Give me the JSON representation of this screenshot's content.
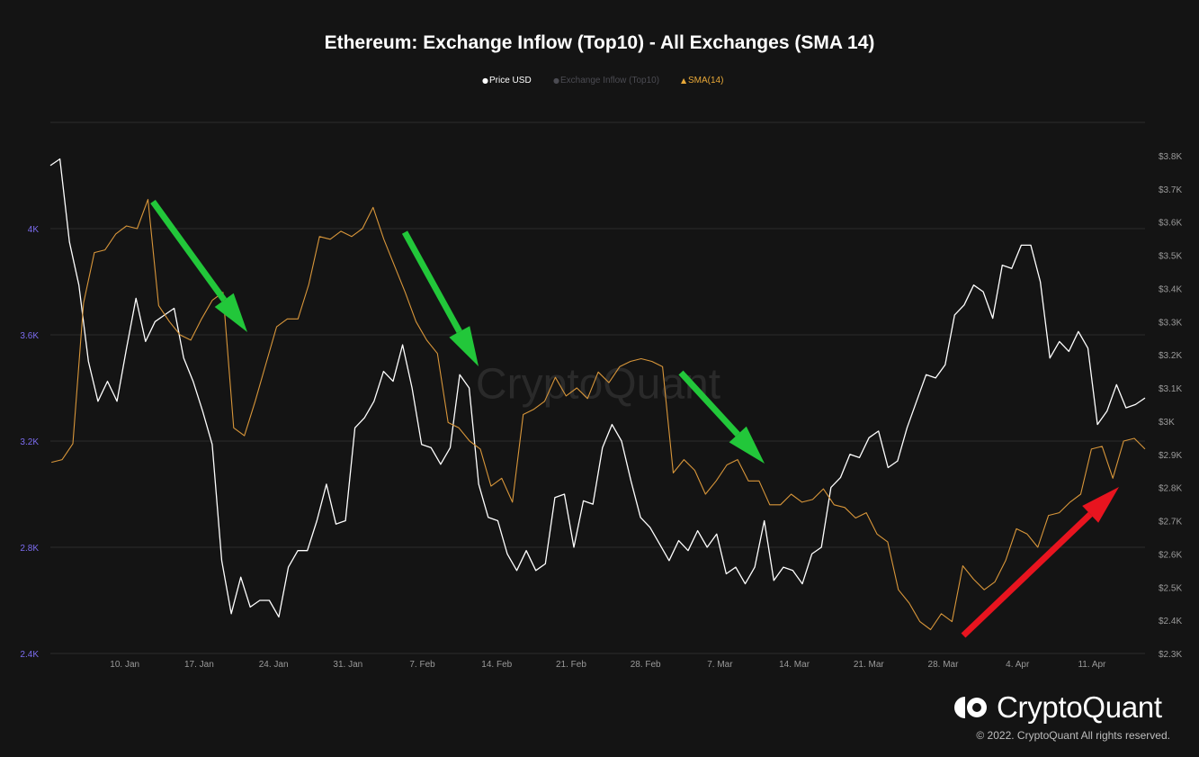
{
  "title": "Ethereum: Exchange Inflow (Top10) - All Exchanges (SMA 14)",
  "legend": [
    {
      "label": "Price USD",
      "marker": "●",
      "color": "#ffffff"
    },
    {
      "label": "Exchange Inflow (Top10)",
      "marker": "●",
      "color": "#4b4b52"
    },
    {
      "label": "SMA(14)",
      "marker": "▲",
      "color": "#e8a838"
    }
  ],
  "watermark": "CryptoQuant",
  "brand": {
    "name": "CryptoQuant",
    "icon": "cryptoquant-logo-icon"
  },
  "copyright": "© 2022. CryptoQuant All rights reserved.",
  "colors": {
    "background": "#141414",
    "price": "#ffffff",
    "sma": "#d8963a",
    "left_axis": "#7c6cf0",
    "right_axis": "#9a9a9a",
    "green_arrow": "#22c73a",
    "red_arrow": "#e8141f"
  },
  "annotations": [
    {
      "type": "arrow",
      "color": "green",
      "icon": "down-arrow-icon"
    },
    {
      "type": "arrow",
      "color": "green",
      "icon": "down-arrow-icon"
    },
    {
      "type": "arrow",
      "color": "green",
      "icon": "down-arrow-icon"
    },
    {
      "type": "arrow",
      "color": "red",
      "icon": "up-arrow-icon"
    }
  ],
  "chart_data": {
    "type": "line",
    "grid": true,
    "legend_position": "top-center",
    "x_ticks": [
      "10. Jan",
      "17. Jan",
      "24. Jan",
      "31. Jan",
      "7. Feb",
      "14. Feb",
      "21. Feb",
      "28. Feb",
      "7. Mar",
      "14. Mar",
      "21. Mar",
      "28. Mar",
      "4. Apr",
      "11. Apr"
    ],
    "x_range": [
      "2022-01-03",
      "2022-04-16"
    ],
    "y_left": {
      "ticks": [
        "2.4K",
        "2.8K",
        "3.2K",
        "3.6K",
        "4K"
      ],
      "range": [
        2400,
        4400
      ]
    },
    "y_right": {
      "ticks": [
        "$2.3K",
        "$2.4K",
        "$2.5K",
        "$2.6K",
        "$2.7K",
        "$2.8K",
        "$2.9K",
        "$3K",
        "$3.1K",
        "$3.2K",
        "$3.3K",
        "$3.4K",
        "$3.5K",
        "$3.6K",
        "$3.7K",
        "$3.8K"
      ],
      "range": [
        2300,
        3900
      ]
    },
    "series": [
      {
        "name": "Price USD",
        "axis": "right",
        "values": [
          3770,
          3790,
          3540,
          3410,
          3180,
          3060,
          3120,
          3060,
          3220,
          3370,
          3240,
          3300,
          3320,
          3340,
          3190,
          3120,
          3030,
          2930,
          2580,
          2420,
          2530,
          2440,
          2460,
          2460,
          2410,
          2560,
          2610,
          2610,
          2700,
          2810,
          2690,
          2700,
          2980,
          3010,
          3060,
          3150,
          3120,
          3230,
          3100,
          2930,
          2920,
          2870,
          2920,
          3140,
          3100,
          2810,
          2710,
          2700,
          2600,
          2550,
          2610,
          2550,
          2570,
          2770,
          2780,
          2620,
          2760,
          2750,
          2920,
          2990,
          2940,
          2820,
          2710,
          2680,
          2630,
          2580,
          2640,
          2610,
          2670,
          2620,
          2660,
          2540,
          2560,
          2510,
          2560,
          2700,
          2520,
          2560,
          2550,
          2510,
          2600,
          2620,
          2800,
          2830,
          2900,
          2890,
          2950,
          2970,
          2860,
          2880,
          2980,
          3060,
          3140,
          3130,
          3170,
          3320,
          3350,
          3410,
          3390,
          3310,
          3470,
          3460,
          3530,
          3530,
          3420,
          3190,
          3240,
          3210,
          3270,
          3220,
          2990,
          3030,
          3110,
          3040,
          3050,
          3070
        ]
      },
      {
        "name": "SMA(14)",
        "axis": "left",
        "values": [
          3120,
          3130,
          3190,
          3720,
          3910,
          3920,
          3980,
          4010,
          4000,
          4110,
          3710,
          3650,
          3600,
          3580,
          3660,
          3730,
          3760,
          3250,
          3220,
          3350,
          3490,
          3630,
          3660,
          3660,
          3790,
          3970,
          3960,
          3990,
          3970,
          4000,
          4080,
          3960,
          3860,
          3760,
          3650,
          3580,
          3530,
          3270,
          3250,
          3200,
          3170,
          3030,
          3060,
          2970,
          3300,
          3320,
          3350,
          3440,
          3370,
          3400,
          3360,
          3460,
          3420,
          3480,
          3500,
          3510,
          3500,
          3480,
          3080,
          3130,
          3090,
          3000,
          3050,
          3110,
          3130,
          3050,
          3050,
          2960,
          2960,
          3000,
          2970,
          2980,
          3020,
          2960,
          2950,
          2910,
          2930,
          2850,
          2820,
          2640,
          2590,
          2520,
          2490,
          2550,
          2520,
          2730,
          2680,
          2640,
          2670,
          2750,
          2870,
          2850,
          2800,
          2920,
          2930,
          2970,
          3000,
          3170,
          3180,
          3060,
          3200,
          3210,
          3170
        ]
      }
    ]
  }
}
